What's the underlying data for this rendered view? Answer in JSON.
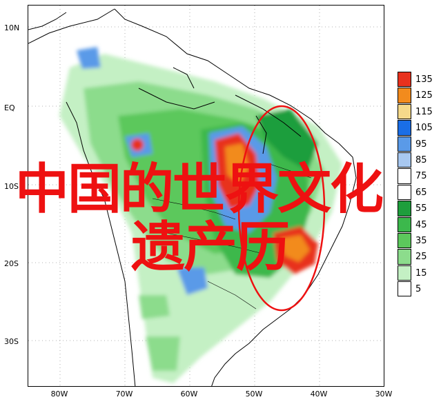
{
  "latitude_labels": [
    "10N",
    "EQ",
    "10S",
    "20S",
    "30S"
  ],
  "longitude_labels": [
    "80W",
    "70W",
    "60W",
    "50W",
    "40W",
    "30W"
  ],
  "legend": {
    "values": [
      "135",
      "125",
      "115",
      "105",
      "95",
      "85",
      "75",
      "65",
      "55",
      "45",
      "35",
      "25",
      "15",
      "5"
    ],
    "colors": [
      "#e8321e",
      "#f28b1d",
      "#f5d98a",
      "#1a6ee6",
      "#5a9ae8",
      "#a8c8f0",
      "#ffffff",
      "#ffffff",
      "#1e9e3c",
      "#3cb84c",
      "#5cc85c",
      "#8cdc8c",
      "#c4f0c4",
      "#ffffff"
    ]
  },
  "overlay": {
    "line1": "中国的世界文化",
    "line2": "遗产历"
  },
  "colors": {
    "highlight_circle": "#ee1111",
    "overlay_text": "#ee1111",
    "coastline": "#000000"
  }
}
